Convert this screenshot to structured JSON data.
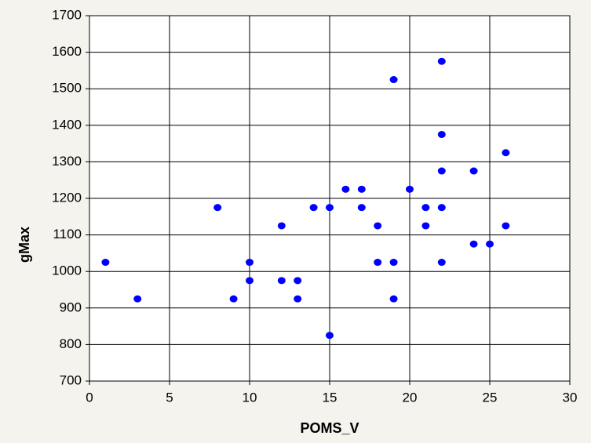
{
  "chart_data": {
    "type": "scatter",
    "x_label": "POMS_V",
    "y_label": "gMax",
    "series": [
      {
        "color": "#0000ff",
        "x": [
          1,
          3,
          8,
          9,
          10,
          10,
          12,
          12,
          13,
          13,
          14,
          15,
          15,
          16,
          17,
          17,
          18,
          18,
          19,
          19,
          19,
          20,
          21,
          21,
          22,
          22,
          22,
          22,
          22,
          24,
          24,
          25,
          26,
          26
        ],
        "values": [
          1025,
          925,
          1175,
          925,
          1025,
          975,
          1125,
          975,
          975,
          925,
          1175,
          1175,
          825,
          1225,
          1225,
          1175,
          1125,
          1025,
          1525,
          1025,
          925,
          1225,
          1175,
          1125,
          1575,
          1375,
          1275,
          1175,
          1025,
          1275,
          1075,
          1075,
          1325,
          1125
        ]
      }
    ],
    "xlim": [
      0,
      30
    ],
    "xticks": [
      0,
      5,
      10,
      15,
      20,
      25,
      30
    ],
    "ylim": [
      700,
      1700
    ],
    "yticks": [
      700,
      800,
      900,
      1000,
      1100,
      1200,
      1300,
      1400,
      1500,
      1600,
      1700
    ],
    "grid": true
  }
}
